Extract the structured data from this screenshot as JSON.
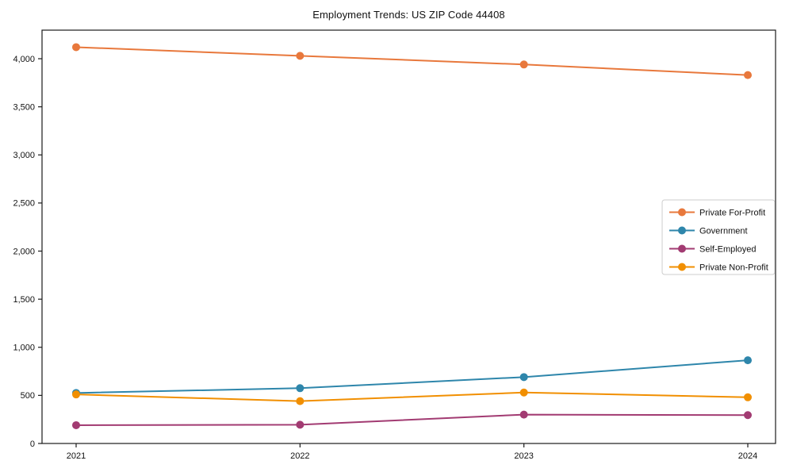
{
  "title": "Employment Trends: US ZIP Code 44408",
  "chart_data": {
    "type": "line",
    "title": "Employment Trends: US ZIP Code 44408",
    "categories": [
      "2021",
      "2022",
      "2023",
      "2024"
    ],
    "x": [
      2021,
      2022,
      2023,
      2024
    ],
    "series": [
      {
        "name": "Private For-Profit",
        "color": "#E8783C",
        "values": [
          4120,
          4030,
          3940,
          3830
        ]
      },
      {
        "name": "Government",
        "color": "#2E86AB",
        "values": [
          525,
          575,
          690,
          865
        ]
      },
      {
        "name": "Self-Employed",
        "color": "#A23B72",
        "values": [
          190,
          195,
          300,
          295
        ]
      },
      {
        "name": "Private Non-Profit",
        "color": "#F18F01",
        "values": [
          510,
          440,
          530,
          480
        ]
      }
    ],
    "xlabel": "",
    "ylabel": "",
    "ylim": [
      0,
      4297
    ],
    "yticks": [
      0,
      500,
      1000,
      1500,
      2000,
      2500,
      3000,
      3500,
      4000
    ],
    "grid": false,
    "legend_position": "center-right",
    "axis_color": "#1a1a1a",
    "legend_border_color": "#cccccc",
    "background_color": "#ffffff"
  }
}
